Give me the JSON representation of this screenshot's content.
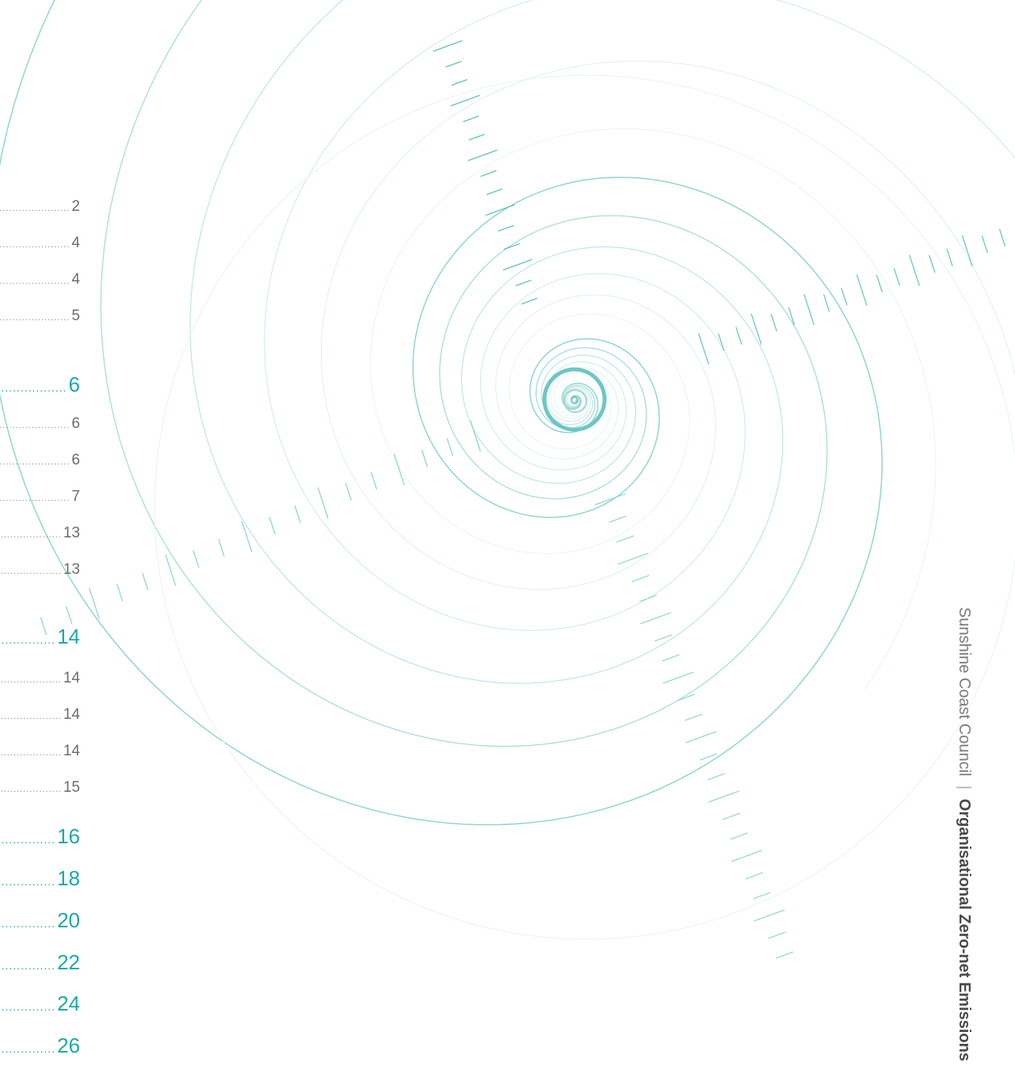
{
  "toc": {
    "entries": [
      {
        "page": "2",
        "level": "sub"
      },
      {
        "page": "4",
        "level": "sub"
      },
      {
        "page": "4",
        "level": "sub"
      },
      {
        "page": "5",
        "level": "sub"
      },
      {
        "page": "6",
        "level": "main"
      },
      {
        "page": "6",
        "level": "sub"
      },
      {
        "page": "6",
        "level": "sub"
      },
      {
        "page": "7",
        "level": "sub"
      },
      {
        "page": "13",
        "level": "sub"
      },
      {
        "page": "13",
        "level": "sub"
      },
      {
        "page": "14",
        "level": "main"
      },
      {
        "page": "14",
        "level": "sub"
      },
      {
        "page": "14",
        "level": "sub"
      },
      {
        "page": "14",
        "level": "sub"
      },
      {
        "page": "15",
        "level": "sub"
      },
      {
        "page": "16",
        "level": "main"
      },
      {
        "page": "18",
        "level": "main"
      },
      {
        "page": "20",
        "level": "main"
      },
      {
        "page": "22",
        "level": "main"
      },
      {
        "page": "24",
        "level": "main"
      },
      {
        "page": "26",
        "level": "main"
      }
    ]
  },
  "spine": {
    "organisation": "Sunshine Coast Council",
    "separator": "|",
    "document_title": "Organisational Zero-net Emissions"
  },
  "colors": {
    "accent": "#1aaaa5",
    "spiral": "#7ccfcb",
    "spiral_light": "#bfe6e4",
    "text_grey": "#6b6b6b"
  },
  "decoration": {
    "icon": "spiral-graphic-icon"
  }
}
